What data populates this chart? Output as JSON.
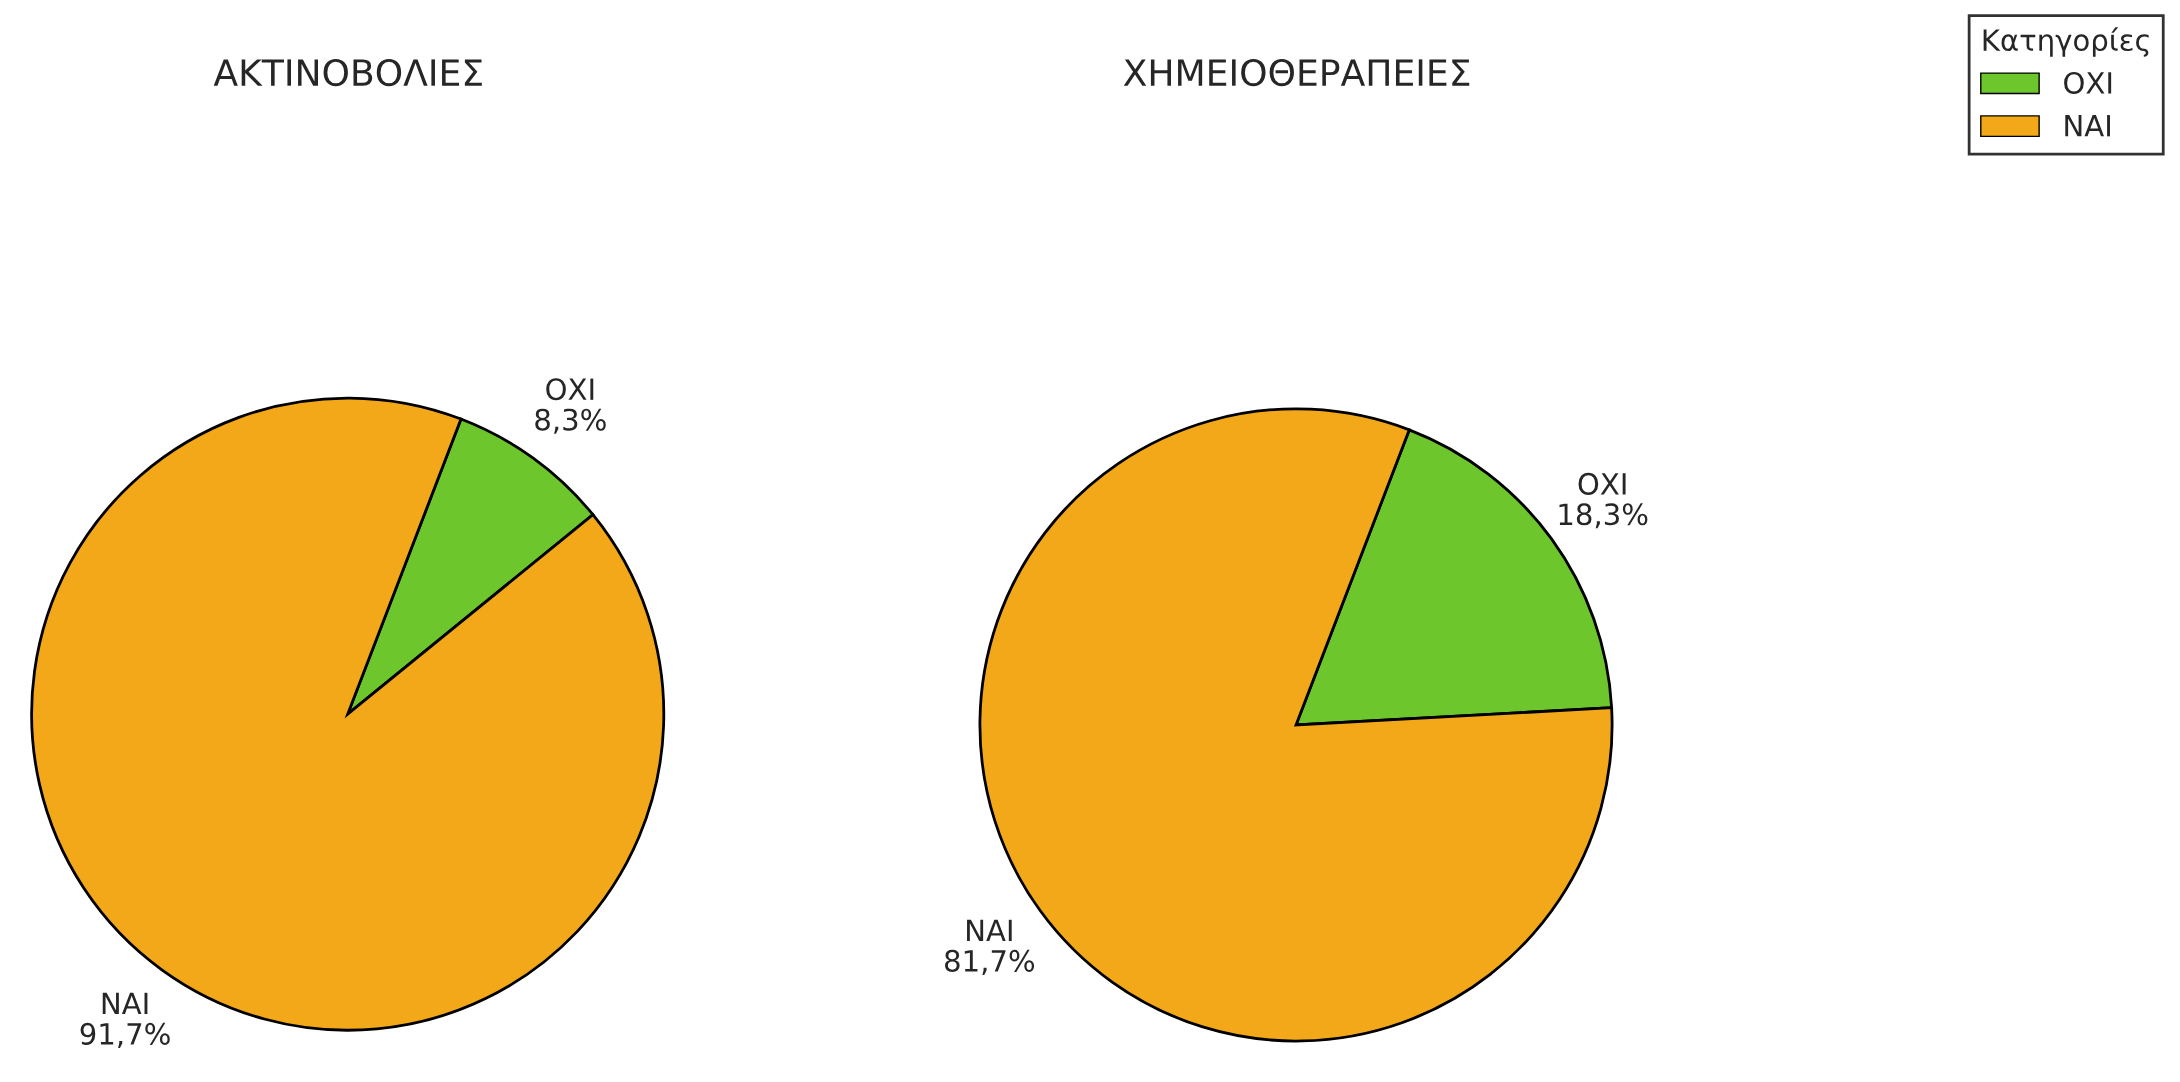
{
  "chart_data": [
    {
      "type": "pie",
      "title": "ΑΚΤΙΝΟΒΟΛΙΕΣ",
      "categories": [
        "ΟΧΙ",
        "ΝΑΙ"
      ],
      "values": [
        8.3,
        91.7
      ],
      "colors": [
        "#6cc62c",
        "#f2a818"
      ],
      "value_labels": [
        "8,3%",
        "91,7%"
      ]
    },
    {
      "type": "pie",
      "title": "ΧΗΜΕΙΟΘΕΡΑΠΕΙΕΣ",
      "categories": [
        "ΟΧΙ",
        "ΝΑΙ"
      ],
      "values": [
        18.3,
        81.7
      ],
      "colors": [
        "#6cc62c",
        "#f2a818"
      ],
      "value_labels": [
        "18,3%",
        "81,7%"
      ],
      "legend": "top right",
      "legend_title": "Κατηγορίες"
    }
  ]
}
